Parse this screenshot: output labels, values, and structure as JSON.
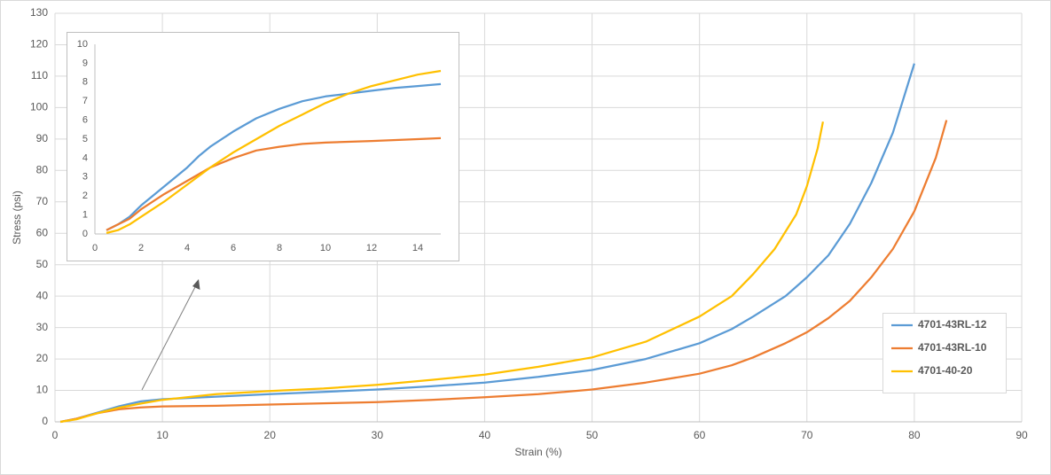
{
  "chart_data": [
    {
      "type": "line",
      "x_label": "Strain (%)",
      "y_label": "Stress (psi)",
      "xlim": [
        0,
        90
      ],
      "ylim": [
        0,
        130
      ],
      "xticks": [
        0,
        10,
        20,
        30,
        40,
        50,
        60,
        70,
        80,
        90
      ],
      "yticks": [
        0,
        10,
        20,
        30,
        40,
        50,
        60,
        70,
        80,
        90,
        100,
        110,
        120,
        130
      ],
      "grid": true,
      "legend": "right",
      "series": [
        {
          "name": "4701-43RL-12",
          "color": "#5b9bd5",
          "x": [
            0.5,
            2,
            4,
            6,
            8,
            10,
            15,
            20,
            25,
            30,
            35,
            40,
            45,
            50,
            55,
            60,
            63,
            65,
            68,
            70,
            72,
            74,
            76,
            78,
            80
          ],
          "values": [
            0,
            1,
            3,
            5,
            6.5,
            7.2,
            8,
            8.8,
            9.5,
            10.3,
            11.3,
            12.5,
            14.3,
            16.5,
            20,
            25,
            29.5,
            33.5,
            40,
            46,
            53,
            63,
            76,
            92,
            114
          ]
        },
        {
          "name": "4701-43RL-10",
          "color": "#ed7d31",
          "x": [
            0.5,
            2,
            4,
            6,
            8,
            10,
            15,
            20,
            25,
            30,
            35,
            40,
            45,
            50,
            55,
            60,
            63,
            65,
            68,
            70,
            72,
            74,
            76,
            78,
            80,
            82,
            83
          ],
          "values": [
            0,
            1,
            2.8,
            4,
            4.6,
            4.9,
            5.1,
            5.5,
            5.9,
            6.3,
            7,
            7.8,
            8.8,
            10.3,
            12.5,
            15.3,
            18,
            20.5,
            25,
            28.5,
            33,
            38.5,
            46,
            55,
            67,
            84,
            96
          ]
        },
        {
          "name": "4701-40-20",
          "color": "#ffc000",
          "x": [
            0.5,
            2,
            4,
            6,
            8,
            10,
            15,
            20,
            25,
            30,
            35,
            40,
            45,
            50,
            55,
            60,
            63,
            65,
            67,
            69,
            70,
            71,
            71.5
          ],
          "values": [
            0,
            0.8,
            2.8,
            4.5,
            5.8,
            7,
            8.8,
            9.8,
            10.6,
            11.8,
            13.3,
            15,
            17.5,
            20.5,
            25.5,
            33.5,
            40,
            47,
            55,
            66,
            75,
            87,
            95.5
          ]
        }
      ]
    },
    {
      "type": "line",
      "xlim": [
        0,
        15
      ],
      "ylim": [
        0,
        10
      ],
      "xticks": [
        0,
        2,
        4,
        6,
        8,
        10,
        12,
        14
      ],
      "yticks": [
        0,
        1,
        2,
        3,
        4,
        5,
        6,
        7,
        8,
        9,
        10
      ],
      "grid": false,
      "series": [
        {
          "color": "#5b9bd5",
          "x": [
            0.5,
            1,
            1.5,
            2,
            3,
            4,
            4.5,
            5,
            6,
            7,
            8,
            9,
            10,
            11,
            12,
            13,
            14,
            15
          ],
          "values": [
            0.2,
            0.5,
            0.9,
            1.5,
            2.5,
            3.5,
            4.1,
            4.6,
            5.4,
            6.1,
            6.6,
            7.0,
            7.25,
            7.4,
            7.55,
            7.7,
            7.8,
            7.9
          ]
        },
        {
          "color": "#ed7d31",
          "x": [
            0.5,
            1,
            1.5,
            2,
            3,
            4,
            5,
            6,
            7,
            8,
            9,
            10,
            12,
            14,
            15
          ],
          "values": [
            0.2,
            0.5,
            0.8,
            1.3,
            2.1,
            2.8,
            3.5,
            4.0,
            4.4,
            4.6,
            4.75,
            4.82,
            4.9,
            5.0,
            5.05
          ]
        },
        {
          "color": "#ffc000",
          "x": [
            0.5,
            1,
            1.5,
            2,
            3,
            4,
            5,
            6,
            7,
            8,
            9,
            10,
            11,
            12,
            13,
            14,
            15
          ],
          "values": [
            0.05,
            0.2,
            0.5,
            0.9,
            1.7,
            2.6,
            3.5,
            4.3,
            5.0,
            5.7,
            6.3,
            6.9,
            7.4,
            7.8,
            8.1,
            8.4,
            8.6
          ]
        }
      ]
    }
  ]
}
